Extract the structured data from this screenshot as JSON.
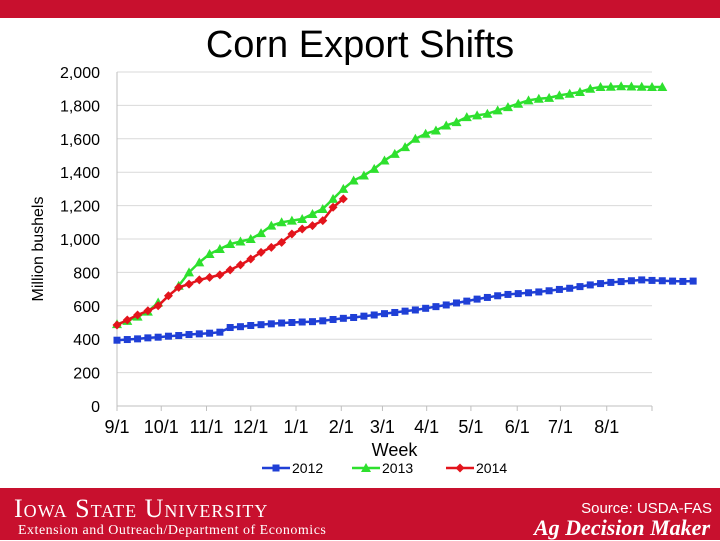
{
  "slide": {
    "title": "Corn Export Shifts",
    "university": "Iowa State University",
    "department": "Extension and Outreach/Department of Economics",
    "source": "Source: USDA-FAS",
    "brand": "Ag Decision Maker"
  },
  "colors": {
    "brand_red": "#c8102e",
    "series_2012": "#1f3fd6",
    "series_2013": "#2ee02e",
    "series_2014": "#e3141c"
  },
  "chart_data": {
    "type": "line",
    "title": "Corn Export Shifts",
    "xlabel": "Week",
    "ylabel": "Million bushels",
    "ylim": [
      0,
      2000
    ],
    "yticks": [
      0,
      200,
      400,
      600,
      800,
      1000,
      1200,
      1400,
      1600,
      1800,
      2000
    ],
    "ytick_labels": [
      "0",
      "200",
      "400",
      "600",
      "800",
      "1,000",
      "1,200",
      "1,400",
      "1,600",
      "1,800",
      "2,000"
    ],
    "xlim_weeks": [
      0,
      52
    ],
    "xticks": [
      {
        "label": "9/1",
        "week": 0
      },
      {
        "label": "10/1",
        "week": 4.3
      },
      {
        "label": "11/1",
        "week": 8.7
      },
      {
        "label": "12/1",
        "week": 13
      },
      {
        "label": "1/1",
        "week": 17.4
      },
      {
        "label": "2/1",
        "week": 21.8
      },
      {
        "label": "3/1",
        "week": 25.8
      },
      {
        "label": "4/1",
        "week": 30.1
      },
      {
        "label": "5/1",
        "week": 34.4
      },
      {
        "label": "6/1",
        "week": 38.9
      },
      {
        "label": "7/1",
        "week": 43.1
      },
      {
        "label": "8/1",
        "week": 47.6
      }
    ],
    "grid": true,
    "legend_position": "bottom",
    "series": [
      {
        "name": "2012",
        "marker": "square",
        "week_start": 0,
        "values": [
          394,
          398,
          402,
          408,
          412,
          418,
          422,
          428,
          432,
          436,
          442,
          470,
          475,
          482,
          487,
          492,
          497,
          500,
          503,
          505,
          510,
          518,
          525,
          530,
          538,
          545,
          553,
          560,
          568,
          575,
          585,
          595,
          605,
          617,
          628,
          640,
          650,
          660,
          668,
          673,
          678,
          683,
          690,
          698,
          705,
          715,
          725,
          733,
          740,
          745,
          750,
          755,
          752,
          750,
          748,
          746,
          748
        ]
      },
      {
        "name": "2013",
        "marker": "triangle",
        "week_start": 0,
        "values": [
          490,
          510,
          535,
          565,
          620,
          null,
          720,
          800,
          860,
          910,
          940,
          970,
          985,
          1000,
          1035,
          1080,
          1100,
          1110,
          1120,
          1150,
          1180,
          1240,
          1300,
          1350,
          1380,
          1420,
          1470,
          1510,
          1550,
          1600,
          1630,
          1650,
          1680,
          1700,
          1730,
          1740,
          1750,
          1770,
          1790,
          1810,
          1830,
          1840,
          1845,
          1860,
          1870,
          1880,
          1900,
          1910,
          1912,
          1915,
          1913,
          1912,
          1910,
          1910
        ]
      },
      {
        "name": "2014",
        "marker": "diamond",
        "week_start": 0,
        "values": [
          485,
          515,
          545,
          570,
          600,
          660,
          710,
          730,
          755,
          770,
          785,
          815,
          845,
          880,
          920,
          950,
          980,
          1030,
          1060,
          1080,
          1110,
          1190,
          1240
        ]
      }
    ]
  }
}
